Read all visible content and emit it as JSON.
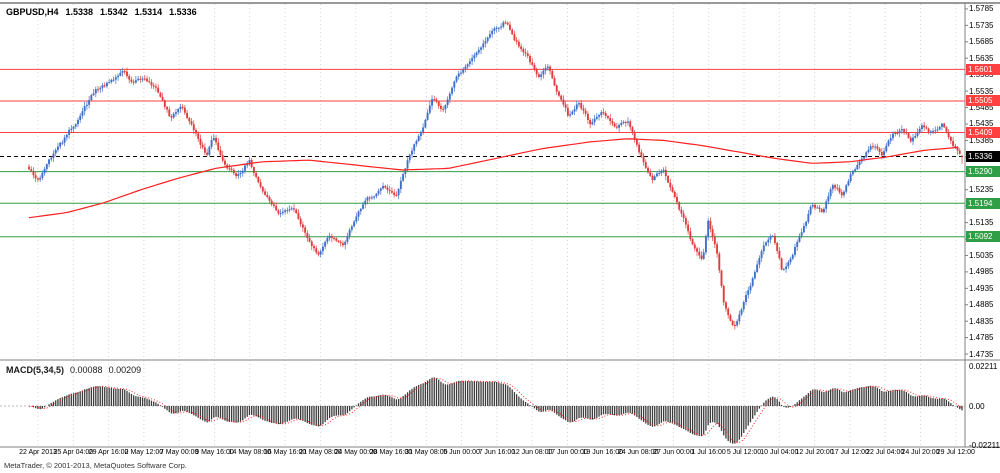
{
  "header": {
    "symbol_period": "GBPUSD,H4",
    "open": "1.5338",
    "high": "1.5342",
    "low": "1.5314",
    "close": "1.5336"
  },
  "macd_header": {
    "label": "MACD(5,34,5)",
    "value_main": "0.00088",
    "value_signal": "0.00209"
  },
  "copyright": "MetaTrader, © 2001-2013, MetaQuotes Software Corp.",
  "colors": {
    "bull": "#3f6fc9",
    "bear": "#e03c3c",
    "ma": "#ff2020",
    "grid": "#d4d4d4",
    "separator": "#808080",
    "top_border": "#333333",
    "macd_bar": "#3c3c3c",
    "macd_signal": "#ff2020",
    "resistance": "#ff4040",
    "support": "#2f9e44",
    "current": "#000000"
  },
  "chart_data": {
    "type": "candlestick",
    "symbol": "GBPUSD",
    "timeframe": "H4",
    "title": "GBPUSD,H4 1.5338 1.5342 1.5314 1.5336",
    "ohlc_last": {
      "open": 1.5338,
      "high": 1.5342,
      "low": 1.5314,
      "close": 1.5336
    },
    "candle_count": 420,
    "noise_seed": 42,
    "noise_amp": 0.0013,
    "price_axis": {
      "min": 1.472,
      "max": 1.58,
      "ticks": [
        "1.5785",
        "1.5735",
        "1.5685",
        "1.5635",
        "1.5585",
        "1.5535",
        "1.5485",
        "1.5435",
        "1.5385",
        "1.5335",
        "1.5285",
        "1.5235",
        "1.5185",
        "1.5135",
        "1.5085",
        "1.5035",
        "1.4985",
        "1.4935",
        "1.4885",
        "1.4835",
        "1.4785",
        "1.4735"
      ]
    },
    "levels": [
      {
        "price": 1.5601,
        "label": "1.5601",
        "color": "#ff4040",
        "type": "resistance",
        "current": false
      },
      {
        "price": 1.5505,
        "label": "1.5505",
        "color": "#ff4040",
        "type": "resistance",
        "current": false
      },
      {
        "price": 1.5409,
        "label": "1.5409",
        "color": "#ff4040",
        "type": "resistance",
        "current": false
      },
      {
        "price": 1.5336,
        "label": "1.5336",
        "color": "#000000",
        "type": "current-price",
        "current": true
      },
      {
        "price": 1.529,
        "label": "1.5290",
        "color": "#2f9e44",
        "type": "support",
        "current": false
      },
      {
        "price": 1.5194,
        "label": "1.5194",
        "color": "#2f9e44",
        "type": "support",
        "current": false
      },
      {
        "price": 1.5092,
        "label": "1.5092",
        "color": "#2f9e44",
        "type": "support",
        "current": false
      }
    ],
    "time_labels": [
      "22 Apr 2013",
      "25 Apr 04:00",
      "29 Apr 16:00",
      "2 May 12:00",
      "7 May 00:00",
      "9 May 16:00",
      "14 May 08:00",
      "16 May 16:00",
      "21 May 08:00",
      "24 May 00:00",
      "28 May 16:00",
      "31 May 08:00",
      "5 Jun 00:00",
      "7 Jun 16:00",
      "12 Jun 08:00",
      "17 Jun 00:00",
      "19 Jun 16:00",
      "24 Jun 08:00",
      "27 Jun 00:00",
      "1 Jul 16:00",
      "5 Jul 12:00",
      "10 Jul 04:00",
      "12 Jul 20:00",
      "17 Jul 12:00",
      "22 Jul 04:00",
      "24 Jul 20:00",
      "29 Jul 12:00"
    ],
    "price_path_keypoints": [
      [
        0.0,
        1.53
      ],
      [
        0.011,
        1.526
      ],
      [
        0.021,
        1.533
      ],
      [
        0.036,
        1.538
      ],
      [
        0.054,
        1.546
      ],
      [
        0.072,
        1.554
      ],
      [
        0.09,
        1.5565
      ],
      [
        0.101,
        1.56
      ],
      [
        0.111,
        1.5555
      ],
      [
        0.125,
        1.5575
      ],
      [
        0.139,
        1.553
      ],
      [
        0.152,
        1.545
      ],
      [
        0.163,
        1.5495
      ],
      [
        0.176,
        1.542
      ],
      [
        0.19,
        1.534
      ],
      [
        0.197,
        1.5395
      ],
      [
        0.208,
        1.532
      ],
      [
        0.222,
        1.528
      ],
      [
        0.236,
        1.532
      ],
      [
        0.251,
        1.523
      ],
      [
        0.268,
        1.516
      ],
      [
        0.283,
        1.5185
      ],
      [
        0.297,
        1.51
      ],
      [
        0.31,
        1.504
      ],
      [
        0.323,
        1.5095
      ],
      [
        0.336,
        1.506
      ],
      [
        0.35,
        1.515
      ],
      [
        0.364,
        1.521
      ],
      [
        0.379,
        1.524
      ],
      [
        0.393,
        1.521
      ],
      [
        0.407,
        1.533
      ],
      [
        0.422,
        1.543
      ],
      [
        0.433,
        1.551
      ],
      [
        0.443,
        1.548
      ],
      [
        0.457,
        1.557
      ],
      [
        0.471,
        1.562
      ],
      [
        0.486,
        1.568
      ],
      [
        0.5,
        1.573
      ],
      [
        0.511,
        1.5748
      ],
      [
        0.521,
        1.569
      ],
      [
        0.535,
        1.564
      ],
      [
        0.546,
        1.557
      ],
      [
        0.557,
        1.5615
      ],
      [
        0.567,
        1.553
      ],
      [
        0.578,
        1.546
      ],
      [
        0.589,
        1.55
      ],
      [
        0.602,
        1.543
      ],
      [
        0.615,
        1.547
      ],
      [
        0.629,
        1.542
      ],
      [
        0.642,
        1.544
      ],
      [
        0.655,
        1.534
      ],
      [
        0.668,
        1.526
      ],
      [
        0.679,
        1.53
      ],
      [
        0.689,
        1.523
      ],
      [
        0.702,
        1.514
      ],
      [
        0.714,
        1.505
      ],
      [
        0.722,
        1.502
      ],
      [
        0.728,
        1.514
      ],
      [
        0.737,
        1.506
      ],
      [
        0.745,
        1.488
      ],
      [
        0.756,
        1.482
      ],
      [
        0.764,
        1.487
      ],
      [
        0.775,
        1.496
      ],
      [
        0.786,
        1.506
      ],
      [
        0.797,
        1.51
      ],
      [
        0.807,
        1.499
      ],
      [
        0.818,
        1.504
      ],
      [
        0.829,
        1.511
      ],
      [
        0.839,
        1.519
      ],
      [
        0.85,
        1.517
      ],
      [
        0.861,
        1.5245
      ],
      [
        0.872,
        1.522
      ],
      [
        0.882,
        1.529
      ],
      [
        0.893,
        1.533
      ],
      [
        0.904,
        1.537
      ],
      [
        0.914,
        1.5345
      ],
      [
        0.925,
        1.54
      ],
      [
        0.936,
        1.542
      ],
      [
        0.946,
        1.5385
      ],
      [
        0.957,
        1.543
      ],
      [
        0.968,
        1.5405
      ],
      [
        0.979,
        1.5435
      ],
      [
        0.989,
        1.538
      ],
      [
        1.0,
        1.5336
      ]
    ],
    "ma_keypoints": [
      [
        0.0,
        1.515
      ],
      [
        0.04,
        1.5165
      ],
      [
        0.08,
        1.5195
      ],
      [
        0.12,
        1.5235
      ],
      [
        0.16,
        1.527
      ],
      [
        0.2,
        1.53
      ],
      [
        0.25,
        1.532
      ],
      [
        0.3,
        1.5325
      ],
      [
        0.35,
        1.531
      ],
      [
        0.4,
        1.5295
      ],
      [
        0.45,
        1.53
      ],
      [
        0.5,
        1.533
      ],
      [
        0.55,
        1.536
      ],
      [
        0.6,
        1.538
      ],
      [
        0.64,
        1.539
      ],
      [
        0.68,
        1.5385
      ],
      [
        0.72,
        1.537
      ],
      [
        0.76,
        1.535
      ],
      [
        0.8,
        1.533
      ],
      [
        0.84,
        1.5315
      ],
      [
        0.88,
        1.532
      ],
      [
        0.92,
        1.5335
      ],
      [
        0.96,
        1.5355
      ],
      [
        1.0,
        1.5365
      ]
    ],
    "macd": {
      "type": "histogram+signal",
      "label": "MACD(5,34,5)",
      "fast": 5,
      "slow": 34,
      "signal": 5,
      "last_main": 0.00088,
      "last_signal": 0.00209,
      "range": 0.02211,
      "axis": [
        "0.02211",
        "0.00",
        "-0.02211"
      ]
    }
  }
}
